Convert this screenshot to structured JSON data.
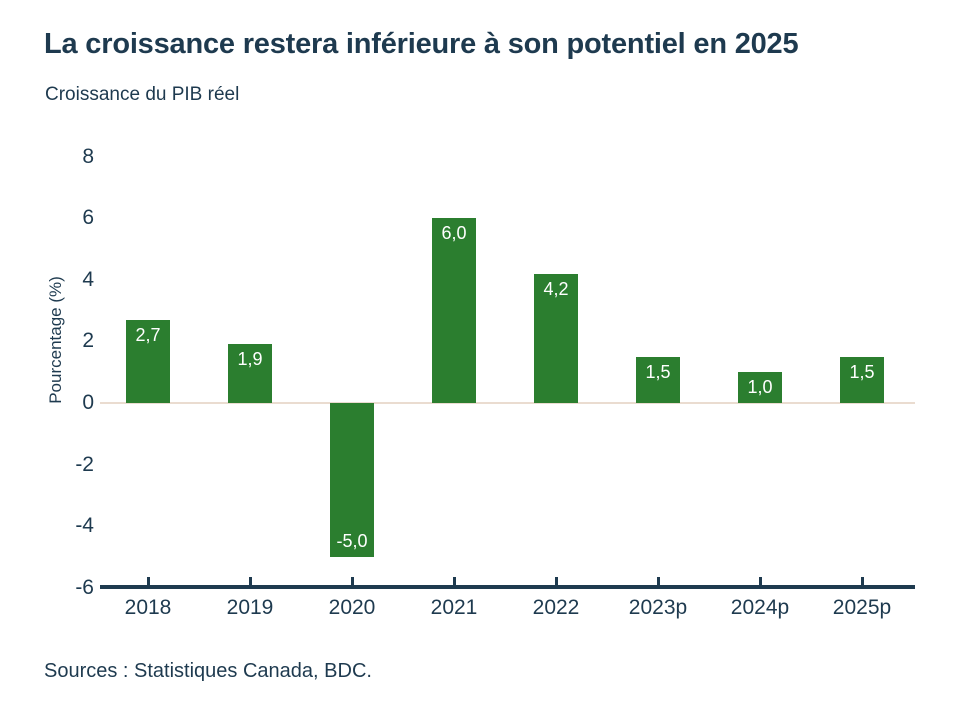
{
  "title": "La croissance restera inférieure à son potentiel en 2025",
  "subtitle": "Croissance du PIB réel",
  "source": "Sources : Statistiques Canada, BDC.",
  "chart_data": {
    "type": "bar",
    "title": "La croissance restera inférieure à son potentiel en 2025",
    "subtitle": "Croissance du PIB réel",
    "categories": [
      "2018",
      "2019",
      "2020",
      "2021",
      "2022",
      "2023p",
      "2024p",
      "2025p"
    ],
    "values": [
      2.7,
      1.9,
      -5.0,
      6.0,
      4.2,
      1.5,
      1.0,
      1.5
    ],
    "value_labels": [
      "2,7",
      "1,9",
      "-5,0",
      "6,0",
      "4,2",
      "1,5",
      "1,0",
      "1,5"
    ],
    "xlabel": "",
    "ylabel": "Pourcentage (%)",
    "ylim": [
      -6,
      8
    ],
    "yticks": [
      8,
      6,
      4,
      2,
      0,
      -2,
      -4,
      -6
    ],
    "grid": false,
    "legend": "none",
    "colors": {
      "bar": "#2b7e2f",
      "bar_label": "#ffffff",
      "text": "#1e3a4f",
      "axis_line": "#1e3a4f",
      "zero_line": "#eadcd0",
      "background": "#ffffff"
    }
  }
}
